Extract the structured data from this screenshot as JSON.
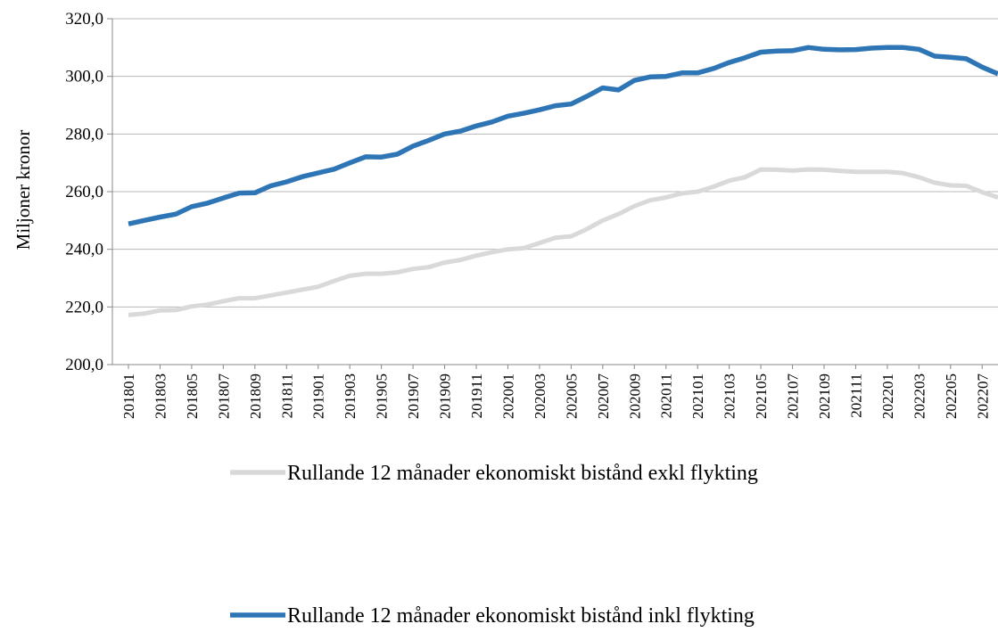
{
  "chart_data": {
    "type": "line",
    "ylabel": "Miljoner kronor",
    "xlabel": "",
    "ylim": [
      200,
      320
    ],
    "yticks": [
      "200,0",
      "220,0",
      "240,0",
      "260,0",
      "280,0",
      "300,0",
      "320,0"
    ],
    "ytick_values": [
      200,
      220,
      240,
      260,
      280,
      300,
      320
    ],
    "grid": "horizontal",
    "legend_position": "bottom",
    "x_tick_labels": [
      "201801",
      "201803",
      "201805",
      "201807",
      "201809",
      "201811",
      "201901",
      "201903",
      "201905",
      "201907",
      "201909",
      "201911",
      "202001",
      "202003",
      "202005",
      "202007",
      "202009",
      "202011",
      "202101",
      "202103",
      "202105",
      "202107",
      "202109",
      "202111",
      "202201",
      "202203",
      "202205",
      "202207"
    ],
    "x": [
      "201801",
      "201802",
      "201803",
      "201804",
      "201805",
      "201806",
      "201807",
      "201808",
      "201809",
      "201810",
      "201811",
      "201812",
      "201901",
      "201902",
      "201903",
      "201904",
      "201905",
      "201906",
      "201907",
      "201908",
      "201909",
      "201910",
      "201911",
      "201912",
      "202001",
      "202002",
      "202003",
      "202004",
      "202005",
      "202006",
      "202007",
      "202008",
      "202009",
      "202010",
      "202011",
      "202012",
      "202101",
      "202102",
      "202103",
      "202104",
      "202105",
      "202106",
      "202107",
      "202108",
      "202109",
      "202110",
      "202111",
      "202112",
      "202201",
      "202202",
      "202203",
      "202204",
      "202205",
      "202206",
      "202207",
      "202208"
    ],
    "series": [
      {
        "name": "Rullande 12 månader ekonomiskt bistånd exkl flykting",
        "color": "#d9d9d9",
        "values": [
          217.2,
          217.7,
          218.8,
          218.9,
          220.2,
          220.8,
          222.0,
          223.0,
          223.0,
          224.0,
          225.0,
          226.0,
          227.0,
          229.0,
          230.8,
          231.5,
          231.5,
          232.0,
          233.2,
          233.8,
          235.4,
          236.3,
          237.8,
          239.0,
          240.0,
          240.4,
          242.2,
          244.0,
          244.5,
          247.0,
          250.0,
          252.2,
          255.0,
          257.0,
          258.0,
          259.4,
          260.0,
          261.7,
          263.8,
          265.0,
          267.7,
          267.6,
          267.3,
          267.7,
          267.6,
          267.2,
          266.9,
          266.9,
          266.9,
          266.4,
          265.0,
          263.1,
          262.2,
          262.0,
          259.8,
          258.0
        ]
      },
      {
        "name": "Rullande 12 månader ekonomiskt bistånd inkl flykting",
        "color": "#2e75b6",
        "values": [
          248.8,
          250.0,
          251.2,
          252.2,
          254.8,
          256.0,
          257.8,
          259.5,
          259.6,
          262.0,
          263.4,
          265.2,
          266.5,
          267.8,
          270.0,
          272.1,
          272.0,
          273.0,
          275.8,
          277.8,
          280.0,
          281.0,
          282.8,
          284.2,
          286.2,
          287.2,
          288.4,
          289.8,
          290.4,
          293.1,
          296.0,
          295.3,
          298.6,
          299.8,
          300.0,
          301.2,
          301.2,
          302.7,
          304.8,
          306.5,
          308.4,
          308.8,
          308.9,
          310.0,
          309.4,
          309.2,
          309.3,
          309.8,
          310.0,
          310.0,
          309.4,
          307.0,
          306.6,
          306.1,
          303.2,
          300.9
        ]
      }
    ]
  }
}
